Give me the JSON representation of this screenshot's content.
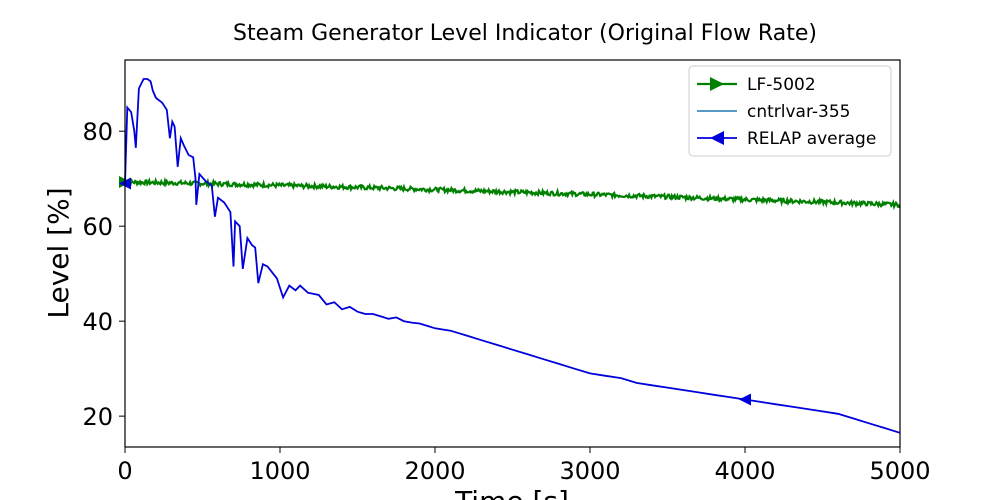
{
  "chart_data": {
    "type": "line",
    "title": "Steam Generator Level Indicator (Original Flow Rate)",
    "xlabel": "Time [s]",
    "ylabel": "Level [%]",
    "xlim": [
      0,
      5000
    ],
    "ylim": [
      13.5,
      95
    ],
    "xticks": [
      0,
      1000,
      2000,
      3000,
      4000,
      5000
    ],
    "yticks": [
      20,
      40,
      60,
      80
    ],
    "grid": false,
    "legend_position": "top-right",
    "series": [
      {
        "name": "LF-5002",
        "color": "#008000",
        "marker": "triangle-right",
        "points": [
          [
            0,
            69.3
          ],
          [
            500,
            69.0
          ],
          [
            1000,
            68.6
          ],
          [
            1500,
            68.2
          ],
          [
            2000,
            67.7
          ],
          [
            2500,
            67.2
          ],
          [
            3000,
            66.7
          ],
          [
            3500,
            66.2
          ],
          [
            4000,
            65.6
          ],
          [
            4500,
            65.1
          ],
          [
            5000,
            64.5
          ]
        ]
      },
      {
        "name": "cntrlvar-355",
        "color": "#1f77b4",
        "marker": "none",
        "points": []
      },
      {
        "name": "RELAP average",
        "color": "#0000dd",
        "marker": "triangle-left",
        "markers_at": [
          0,
          4000
        ],
        "points": [
          [
            0,
            69.0
          ],
          [
            15,
            85.0
          ],
          [
            40,
            84.0
          ],
          [
            60,
            80.0
          ],
          [
            70,
            76.5
          ],
          [
            90,
            89.0
          ],
          [
            120,
            91.0
          ],
          [
            145,
            91.0
          ],
          [
            165,
            90.5
          ],
          [
            180,
            88.5
          ],
          [
            200,
            87.0
          ],
          [
            240,
            86.0
          ],
          [
            270,
            84.5
          ],
          [
            290,
            78.5
          ],
          [
            305,
            82.0
          ],
          [
            320,
            81.0
          ],
          [
            340,
            72.5
          ],
          [
            360,
            78.5
          ],
          [
            380,
            77.0
          ],
          [
            410,
            75.0
          ],
          [
            440,
            74.5
          ],
          [
            455,
            70.0
          ],
          [
            460,
            64.5
          ],
          [
            480,
            71.0
          ],
          [
            520,
            69.5
          ],
          [
            560,
            68.5
          ],
          [
            580,
            62.0
          ],
          [
            600,
            66.0
          ],
          [
            640,
            65.0
          ],
          [
            680,
            63.0
          ],
          [
            700,
            51.5
          ],
          [
            710,
            61.0
          ],
          [
            740,
            60.0
          ],
          [
            760,
            51.0
          ],
          [
            790,
            57.5
          ],
          [
            820,
            56.0
          ],
          [
            840,
            55.5
          ],
          [
            860,
            48.0
          ],
          [
            890,
            52.0
          ],
          [
            920,
            51.5
          ],
          [
            980,
            49.0
          ],
          [
            1020,
            45.0
          ],
          [
            1060,
            47.5
          ],
          [
            1100,
            46.5
          ],
          [
            1130,
            47.5
          ],
          [
            1180,
            46.0
          ],
          [
            1250,
            45.5
          ],
          [
            1300,
            43.5
          ],
          [
            1350,
            44.0
          ],
          [
            1400,
            42.5
          ],
          [
            1450,
            43.0
          ],
          [
            1500,
            42.0
          ],
          [
            1550,
            41.5
          ],
          [
            1600,
            41.5
          ],
          [
            1650,
            41.0
          ],
          [
            1700,
            40.5
          ],
          [
            1750,
            40.8
          ],
          [
            1800,
            40.0
          ],
          [
            1850,
            39.7
          ],
          [
            1900,
            39.5
          ],
          [
            1950,
            39.0
          ],
          [
            2000,
            38.5
          ],
          [
            2100,
            38.0
          ],
          [
            2200,
            37.0
          ],
          [
            2300,
            36.0
          ],
          [
            2400,
            35.0
          ],
          [
            2500,
            34.0
          ],
          [
            2600,
            33.0
          ],
          [
            2700,
            32.0
          ],
          [
            2800,
            31.0
          ],
          [
            2900,
            30.0
          ],
          [
            3000,
            29.0
          ],
          [
            3100,
            28.5
          ],
          [
            3200,
            28.0
          ],
          [
            3300,
            27.0
          ],
          [
            3400,
            26.5
          ],
          [
            3500,
            26.0
          ],
          [
            3600,
            25.5
          ],
          [
            3700,
            25.0
          ],
          [
            3800,
            24.5
          ],
          [
            3900,
            24.0
          ],
          [
            4000,
            23.5
          ],
          [
            4100,
            23.0
          ],
          [
            4200,
            22.5
          ],
          [
            4300,
            22.0
          ],
          [
            4400,
            21.5
          ],
          [
            4500,
            21.0
          ],
          [
            4600,
            20.5
          ],
          [
            4700,
            19.5
          ],
          [
            4800,
            18.5
          ],
          [
            4900,
            17.5
          ],
          [
            5000,
            16.5
          ]
        ]
      }
    ]
  }
}
